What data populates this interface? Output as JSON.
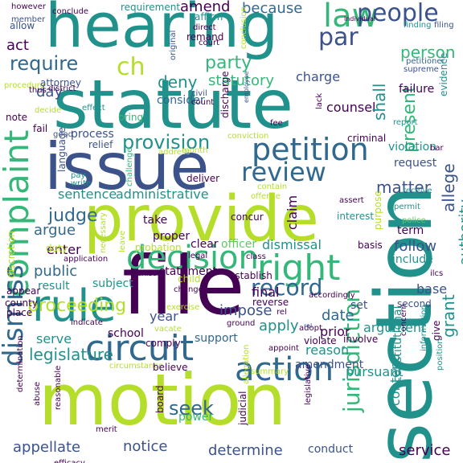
{
  "palette": {
    "purple": "#440154",
    "indigo": "#3b528b",
    "blue": "#31688e",
    "teal": "#21918c",
    "green": "#35b779",
    "lightgreen": "#5ec962",
    "lime": "#b5de2b",
    "yellow": "#d8e219",
    "background": "#ffffff"
  },
  "words": [
    {
      "text": "hearing",
      "color": "#21918c"
    },
    {
      "text": "statute",
      "color": "#21918c"
    },
    {
      "text": "issue",
      "color": "#3b528b"
    },
    {
      "text": "provide",
      "color": "#b5de2b"
    },
    {
      "text": "file",
      "color": "#440154"
    },
    {
      "text": "section",
      "color": "#21918c"
    },
    {
      "text": "motion",
      "color": "#b5de2b"
    },
    {
      "text": "circuit",
      "color": "#31688e"
    },
    {
      "text": "rule",
      "color": "#21918c"
    },
    {
      "text": "decision",
      "color": "#35b779"
    },
    {
      "text": "petition",
      "color": "#31688e"
    },
    {
      "text": "review",
      "color": "#31688e"
    },
    {
      "text": "right",
      "color": "#35b779"
    },
    {
      "text": "complaint",
      "color": "#35b779"
    },
    {
      "text": "action",
      "color": "#31688e"
    },
    {
      "text": "dismiss",
      "color": "#31688e"
    },
    {
      "text": "jurisdiction",
      "color": "#35b779"
    },
    {
      "text": "law",
      "color": "#35b779"
    },
    {
      "text": "people",
      "color": "#3b528b"
    },
    {
      "text": "par",
      "color": "#3b528b"
    },
    {
      "text": "ch",
      "color": "#b5de2b"
    },
    {
      "text": "require",
      "color": "#31688e"
    },
    {
      "text": "party",
      "color": "#35b779"
    },
    {
      "text": "deny",
      "color": "#21918c"
    },
    {
      "text": "amend",
      "color": "#440154"
    },
    {
      "text": "because",
      "color": "#31688e"
    },
    {
      "text": "act",
      "color": "#440154"
    },
    {
      "text": "day",
      "color": "#3b528b"
    },
    {
      "text": "consider",
      "color": "#31688e"
    },
    {
      "text": "statutory",
      "color": "#35b779"
    },
    {
      "text": "charge",
      "color": "#3b528b"
    },
    {
      "text": "counsel",
      "color": "#440154"
    },
    {
      "text": "person",
      "color": "#35b779"
    },
    {
      "text": "present",
      "color": "#35b779"
    },
    {
      "text": "shall",
      "color": "#21918c"
    },
    {
      "text": "failure",
      "color": "#440154"
    },
    {
      "text": "provision",
      "color": "#21918c"
    },
    {
      "text": "process",
      "color": "#3b528b"
    },
    {
      "text": "relief",
      "color": "#3b528b"
    },
    {
      "text": "sentence",
      "color": "#21918c"
    },
    {
      "text": "administrative",
      "color": "#21918c"
    },
    {
      "text": "judge",
      "color": "#31688e"
    },
    {
      "text": "argue",
      "color": "#31688e"
    },
    {
      "text": "matter",
      "color": "#3b528b"
    },
    {
      "text": "allege",
      "color": "#3b528b"
    },
    {
      "text": "violation",
      "color": "#21918c"
    },
    {
      "text": "request",
      "color": "#3b528b"
    },
    {
      "text": "claim",
      "color": "#440154"
    },
    {
      "text": "enter",
      "color": "#440154"
    },
    {
      "text": "officer",
      "color": "#5ec962"
    },
    {
      "text": "dismissal",
      "color": "#21918c"
    },
    {
      "text": "public",
      "color": "#31688e"
    },
    {
      "text": "result",
      "color": "#21918c"
    },
    {
      "text": "subject",
      "color": "#21918c"
    },
    {
      "text": "year",
      "color": "#3b528b"
    },
    {
      "text": "record",
      "color": "#31688e"
    },
    {
      "text": "proceeding",
      "color": "#b5de2b"
    },
    {
      "text": "serve",
      "color": "#21918c"
    },
    {
      "text": "final",
      "color": "#440154"
    },
    {
      "text": "impose",
      "color": "#3b528b"
    },
    {
      "text": "apply",
      "color": "#21918c"
    },
    {
      "text": "date",
      "color": "#31688e"
    },
    {
      "text": "prior",
      "color": "#440154"
    },
    {
      "text": "reason",
      "color": "#21918c"
    },
    {
      "text": "argument",
      "color": "#21918c"
    },
    {
      "text": "base",
      "color": "#3b528b"
    },
    {
      "text": "grant",
      "color": "#21918c"
    },
    {
      "text": "authority",
      "color": "#21918c"
    },
    {
      "text": "follow",
      "color": "#3b528b"
    },
    {
      "text": "include",
      "color": "#21918c"
    },
    {
      "text": "term",
      "color": "#440154"
    },
    {
      "text": "legislature",
      "color": "#21918c"
    },
    {
      "text": "seek",
      "color": "#31688e"
    },
    {
      "text": "support",
      "color": "#31688e"
    },
    {
      "text": "power",
      "color": "#35b779"
    },
    {
      "text": "amendment",
      "color": "#3b528b"
    },
    {
      "text": "pursuant",
      "color": "#21918c"
    },
    {
      "text": "constitutional",
      "color": "#21918c"
    },
    {
      "text": "appellate",
      "color": "#3b528b"
    },
    {
      "text": "notice",
      "color": "#3b528b"
    },
    {
      "text": "determine",
      "color": "#3b528b"
    },
    {
      "text": "conduct",
      "color": "#3b528b"
    },
    {
      "text": "service",
      "color": "#440154"
    },
    {
      "text": "contend",
      "color": "#21918c"
    },
    {
      "text": "requirement",
      "color": "#21918c"
    },
    {
      "text": "affirm",
      "color": "#21918c"
    },
    {
      "text": "conclusion",
      "color": "#b5de2b"
    },
    {
      "text": "finding",
      "color": "#21918c"
    },
    {
      "text": "filing",
      "color": "#3b528b"
    },
    {
      "text": "however",
      "color": "#440154"
    },
    {
      "text": "conclude",
      "color": "#440154"
    },
    {
      "text": "allow",
      "color": "#3b528b"
    },
    {
      "text": "member",
      "color": "#3b528b"
    },
    {
      "text": "direct",
      "color": "#440154"
    },
    {
      "text": "court",
      "color": "#440154"
    },
    {
      "text": "remand",
      "color": "#440154"
    },
    {
      "text": "original",
      "color": "#3b528b"
    },
    {
      "text": "individual",
      "color": "#440154"
    },
    {
      "text": "petitioner",
      "color": "#31688e"
    },
    {
      "text": "supreme",
      "color": "#3b528b"
    },
    {
      "text": "evidence",
      "color": "#21918c"
    },
    {
      "text": "procedure",
      "color": "#b5de2b"
    },
    {
      "text": "attorney",
      "color": "#3b528b"
    },
    {
      "text": "district",
      "color": "#440154"
    },
    {
      "text": "thus",
      "color": "#440154"
    },
    {
      "text": "count",
      "color": "#440154"
    },
    {
      "text": "civil",
      "color": "#3b528b"
    },
    {
      "text": "employee",
      "color": "#3b528b"
    },
    {
      "text": "note",
      "color": "#440154"
    },
    {
      "text": "decide",
      "color": "#b5de2b"
    },
    {
      "text": "effect",
      "color": "#21918c"
    },
    {
      "text": "bring",
      "color": "#35b779"
    },
    {
      "text": "lack",
      "color": "#440154"
    },
    {
      "text": "report",
      "color": "#21918c"
    },
    {
      "text": "discharge",
      "color": "#440154"
    },
    {
      "text": "conviction",
      "color": "#b5de2b"
    },
    {
      "text": "criminal",
      "color": "#440154"
    },
    {
      "text": "fee",
      "color": "#440154"
    },
    {
      "text": "fail",
      "color": "#440154"
    },
    {
      "text": "good",
      "color": "#3b528b"
    },
    {
      "text": "month",
      "color": "#b5de2b"
    },
    {
      "text": "address",
      "color": "#b5de2b"
    },
    {
      "text": "challenge",
      "color": "#35b779"
    },
    {
      "text": "pay",
      "color": "#21918c"
    },
    {
      "text": "write",
      "color": "#21918c"
    },
    {
      "text": "deliver",
      "color": "#440154"
    },
    {
      "text": "language",
      "color": "#3b528b"
    },
    {
      "text": "contain",
      "color": "#b5de2b"
    },
    {
      "text": "offense",
      "color": "#b5de2b"
    },
    {
      "text": "assert",
      "color": "#440154"
    },
    {
      "text": "interest",
      "color": "#21918c"
    },
    {
      "text": "receive",
      "color": "#21918c"
    },
    {
      "text": "permit",
      "color": "#21918c"
    },
    {
      "text": "police",
      "color": "#5ec962"
    },
    {
      "text": "purpose",
      "color": "#b5de2b"
    },
    {
      "text": "necessary",
      "color": "#b5de2b"
    },
    {
      "text": "take",
      "color": "#440154"
    },
    {
      "text": "proper",
      "color": "#440154"
    },
    {
      "text": "concur",
      "color": "#440154"
    },
    {
      "text": "probation",
      "color": "#b5de2b"
    },
    {
      "text": "clear",
      "color": "#440154"
    },
    {
      "text": "basis",
      "color": "#440154"
    },
    {
      "text": "discretion",
      "color": "#b5de2b"
    },
    {
      "text": "duty",
      "color": "#b5de2b"
    },
    {
      "text": "application",
      "color": "#440154"
    },
    {
      "text": "leave",
      "color": "#b5de2b"
    },
    {
      "text": "exist",
      "color": "#440154"
    },
    {
      "text": "statement",
      "color": "#440154"
    },
    {
      "text": "class",
      "color": "#440154"
    },
    {
      "text": "establish",
      "color": "#440154"
    },
    {
      "text": "child",
      "color": "#b5de2b"
    },
    {
      "text": "legal",
      "color": "#440154"
    },
    {
      "text": "change",
      "color": "#440154"
    },
    {
      "text": "accordingly",
      "color": "#440154"
    },
    {
      "text": "reverse",
      "color": "#440154"
    },
    {
      "text": "second",
      "color": "#3b528b"
    },
    {
      "text": "appear",
      "color": "#440154"
    },
    {
      "text": "county",
      "color": "#440154"
    },
    {
      "text": "place",
      "color": "#440154"
    },
    {
      "text": "exercise",
      "color": "#b5de2b"
    },
    {
      "text": "school",
      "color": "#440154"
    },
    {
      "text": "vacate",
      "color": "#b5de2b"
    },
    {
      "text": "ground",
      "color": "#440154"
    },
    {
      "text": "adopt",
      "color": "#440154"
    },
    {
      "text": "violate",
      "color": "#440154"
    },
    {
      "text": "involve",
      "color": "#440154"
    },
    {
      "text": "appoint",
      "color": "#440154"
    },
    {
      "text": "concern",
      "color": "#440154"
    },
    {
      "text": "give",
      "color": "#440154"
    },
    {
      "text": "information",
      "color": "#21918c"
    },
    {
      "text": "position",
      "color": "#21918c"
    },
    {
      "text": "comply",
      "color": "#440154"
    },
    {
      "text": "indicate",
      "color": "#440154"
    },
    {
      "text": "circumstance",
      "color": "#b5de2b"
    },
    {
      "text": "believe",
      "color": "#440154"
    },
    {
      "text": "summary",
      "color": "#b5de2b"
    },
    {
      "text": "allegation",
      "color": "#b5de2b"
    },
    {
      "text": "legislative",
      "color": "#440154"
    },
    {
      "text": "judicial",
      "color": "#440154"
    },
    {
      "text": "determination",
      "color": "#440154"
    },
    {
      "text": "abuse",
      "color": "#440154"
    },
    {
      "text": "reasonable",
      "color": "#440154"
    },
    {
      "text": "board",
      "color": "#440154"
    },
    {
      "text": "merit",
      "color": "#440154"
    },
    {
      "text": "efficacy",
      "color": "#440154"
    },
    {
      "text": "rel",
      "color": "#440154"
    },
    {
      "text": "set",
      "color": "#3b528b"
    },
    {
      "text": "bar",
      "color": "#440154"
    },
    {
      "text": "ilcs",
      "color": "#440154"
    },
    {
      "text": "rel",
      "color": "#3b528b"
    }
  ]
}
